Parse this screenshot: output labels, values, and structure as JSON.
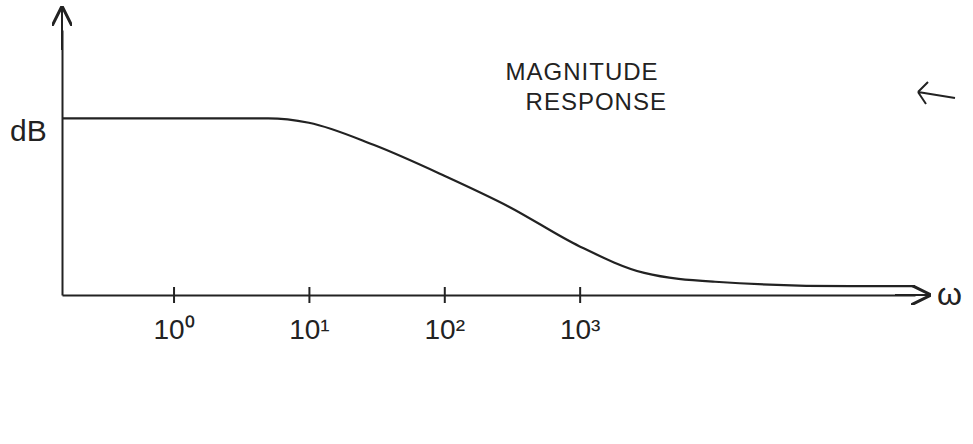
{
  "chart_data": {
    "type": "line",
    "x_label": "ω",
    "y_label": "dB",
    "annotation": "MAGNITUDE RESPONSE",
    "x": [
      0.15,
      1,
      5,
      10,
      30,
      100,
      300,
      1000,
      3000,
      10000,
      100000,
      300000
    ],
    "values": [
      40,
      40,
      40,
      39,
      34,
      27,
      20,
      11,
      5,
      3,
      2,
      2
    ],
    "color": "#222222",
    "log": "x",
    "tick_labels": "x",
    "xlim": [
      0.15,
      300000
    ],
    "ylim": [
      0,
      60
    ],
    "xticks": [
      {
        "value": 1,
        "label": "10⁰"
      },
      {
        "value": 10,
        "label": "10¹"
      },
      {
        "value": 100,
        "label": "10²"
      },
      {
        "value": 1000,
        "label": "10³"
      }
    ]
  }
}
